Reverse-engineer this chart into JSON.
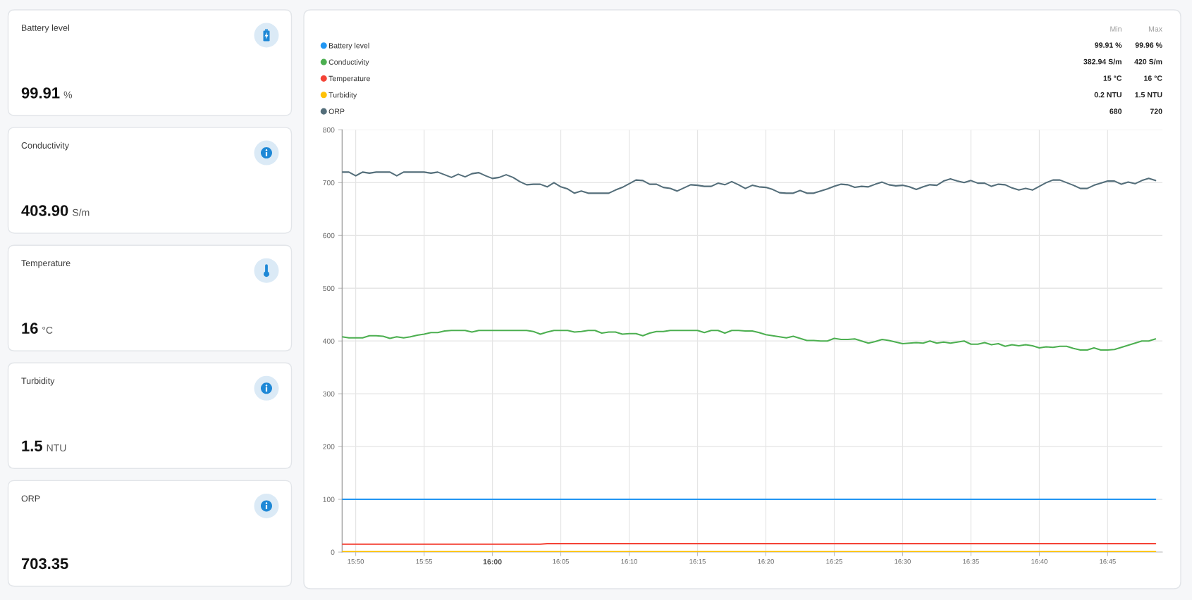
{
  "chart_data": [
    {
      "type": "other",
      "title": "Battery level",
      "annotations": [
        "99.91",
        "%"
      ]
    },
    {
      "type": "other",
      "title": "Conductivity",
      "annotations": [
        "403.90",
        "S/m"
      ]
    },
    {
      "type": "other",
      "title": "Temperature",
      "annotations": [
        "16",
        "°C"
      ]
    },
    {
      "type": "other",
      "title": "Turbidity",
      "annotations": [
        "1.5",
        "NTU"
      ]
    },
    {
      "type": "other",
      "title": "ORP",
      "annotations": [
        "703.35"
      ]
    },
    {
      "type": "line",
      "x": [
        15.8167,
        15.825,
        15.8333,
        15.8417,
        15.85,
        15.8583,
        15.8667,
        15.875,
        15.8833,
        15.8917,
        15.9,
        15.9083,
        15.9167,
        15.925,
        15.9333,
        15.9417,
        15.95,
        15.9583,
        15.9667,
        15.975,
        15.9833,
        15.9917,
        16,
        16.0083,
        16.0167,
        16.025,
        16.0333,
        16.0417,
        16.05,
        16.0583,
        16.0667,
        16.075,
        16.0833,
        16.0917,
        16.1,
        16.1083,
        16.1167,
        16.125,
        16.1333,
        16.1417,
        16.15,
        16.1583,
        16.1667,
        16.175,
        16.1833,
        16.1917,
        16.2,
        16.2083,
        16.2167,
        16.225,
        16.2333,
        16.2417,
        16.25,
        16.2583,
        16.2667,
        16.275,
        16.2833,
        16.2917,
        16.3,
        16.3083,
        16.3167,
        16.325,
        16.3333,
        16.3417,
        16.35,
        16.3583,
        16.3667,
        16.375,
        16.3833,
        16.3917,
        16.4,
        16.4083,
        16.4167,
        16.425,
        16.4333,
        16.4417,
        16.45,
        16.4583,
        16.4667,
        16.475,
        16.4833,
        16.4917,
        16.5,
        16.5083,
        16.5167,
        16.525,
        16.5333,
        16.5417,
        16.55,
        16.5583,
        16.5667,
        16.575,
        16.5833,
        16.5917,
        16.6,
        16.6083,
        16.6167,
        16.625,
        16.6333,
        16.6417,
        16.65,
        16.6583,
        16.6667,
        16.675,
        16.6833,
        16.6917,
        16.7,
        16.7083,
        16.7167,
        16.725,
        16.7333,
        16.7417,
        16.75,
        16.7583,
        16.7667,
        16.775,
        16.7833,
        16.7917,
        16.8,
        16.8083
      ],
      "series": [
        {
          "name": "Battery level",
          "color": "#2196f3",
          "x": [
            15.8167,
            16.8083
          ],
          "values": [
            100,
            100
          ]
        },
        {
          "name": "Conductivity",
          "color": "#4caf50",
          "values": [
            408,
            406,
            406,
            406,
            410,
            410,
            409,
            405,
            408,
            406,
            408,
            411,
            413,
            416,
            416,
            419,
            420,
            420,
            420,
            417,
            420,
            420,
            420,
            420,
            420,
            420,
            420,
            420,
            418,
            413,
            417,
            420,
            420,
            420,
            417,
            418,
            420,
            420,
            415,
            417,
            417,
            413,
            414,
            414,
            410,
            415,
            418,
            418,
            420,
            420,
            420,
            420,
            420,
            416,
            420,
            420,
            415,
            420,
            420,
            419,
            419,
            416,
            412,
            410,
            408,
            406,
            409,
            405,
            401,
            401,
            400,
            400,
            405,
            403,
            403,
            404,
            400,
            396,
            399,
            403,
            401,
            398,
            395,
            396,
            397,
            396,
            400,
            396,
            398,
            396,
            398,
            400,
            394,
            394,
            397,
            393,
            395,
            390,
            393,
            391,
            393,
            391,
            387,
            389,
            388,
            390,
            390,
            386,
            383,
            383,
            387,
            383,
            383,
            384,
            388,
            392,
            396,
            400,
            400,
            404
          ]
        },
        {
          "name": "Temperature",
          "color": "#f44336",
          "x": [
            15.8167,
            16.0583,
            16.0667,
            16.8083
          ],
          "values": [
            15,
            15,
            16,
            16
          ]
        },
        {
          "name": "Turbidity",
          "color": "#ffc107",
          "x": [
            15.8167,
            16.8083
          ],
          "values": [
            1,
            1
          ]
        },
        {
          "name": "ORP",
          "color": "#546e7a",
          "values": [
            720,
            720,
            713,
            720,
            718,
            720,
            720,
            720,
            713,
            720,
            720,
            720,
            720,
            718,
            720,
            715,
            710,
            716,
            711,
            717,
            719,
            713,
            708,
            710,
            715,
            710,
            702,
            696,
            697,
            697,
            692,
            700,
            692,
            688,
            680,
            684,
            680,
            680,
            680,
            680,
            686,
            691,
            698,
            705,
            704,
            697,
            697,
            691,
            689,
            684,
            690,
            696,
            695,
            693,
            693,
            699,
            696,
            702,
            696,
            689,
            695,
            692,
            691,
            687,
            681,
            680,
            680,
            685,
            680,
            680,
            684,
            688,
            693,
            697,
            696,
            691,
            693,
            692,
            697,
            701,
            696,
            694,
            695,
            692,
            687,
            692,
            696,
            695,
            703,
            707,
            703,
            700,
            704,
            699,
            699,
            693,
            697,
            696,
            690,
            686,
            689,
            686,
            693,
            700,
            705,
            705,
            700,
            695,
            689,
            689,
            695,
            699,
            703,
            703,
            697,
            701,
            698,
            704,
            708,
            704
          ]
        }
      ],
      "xlim": [
        15.8167,
        16.8167
      ],
      "xticks": [
        {
          "value": 15.8333,
          "label": "15:50"
        },
        {
          "value": 15.9167,
          "label": "15:55"
        },
        {
          "value": 16,
          "label": "16:00"
        },
        {
          "value": 16.0833,
          "label": "16:05"
        },
        {
          "value": 16.1667,
          "label": "16:10"
        },
        {
          "value": 16.25,
          "label": "16:15"
        },
        {
          "value": 16.3333,
          "label": "16:20"
        },
        {
          "value": 16.4167,
          "label": "16:25"
        },
        {
          "value": 16.5,
          "label": "16:30"
        },
        {
          "value": 16.5833,
          "label": "16:35"
        },
        {
          "value": 16.6667,
          "label": "16:40"
        },
        {
          "value": 16.75,
          "label": "16:45"
        }
      ],
      "ylim": [
        0,
        800
      ],
      "yticks": [
        0,
        100,
        200,
        300,
        400,
        500,
        600,
        700,
        800
      ],
      "grid": true,
      "legend": "top left",
      "annotations": [
        "Min",
        "Max",
        "99.91 %",
        "99.96 %",
        "382.94 S/m",
        "420 S/m",
        "15 °C",
        "16 °C",
        "0.2 NTU",
        "1.5 NTU",
        "680",
        "720"
      ]
    }
  ]
}
